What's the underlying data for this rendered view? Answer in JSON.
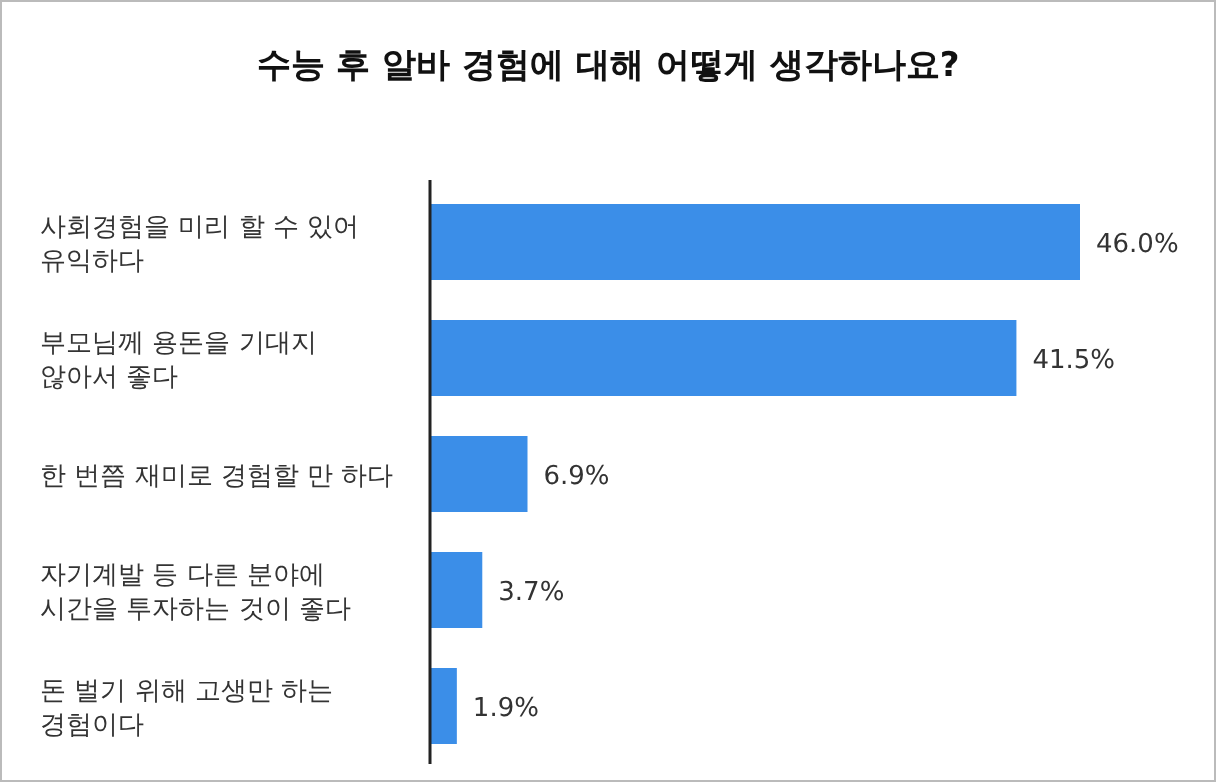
{
  "chart_data": {
    "type": "bar",
    "orientation": "horizontal",
    "title": "수능 후 알바 경험에 대해 어떻게 생각하나요?",
    "categories": [
      "사회경험을 미리 할 수 있어 유익하다",
      "부모님께 용돈을 기대지 않아서 좋다",
      "한 번쯤 재미로 경험할 만 하다",
      "자기계발 등 다른 분야에 시간을 투자하는 것이 좋다",
      "돈 벌기 위해 고생만 하는 경험이다"
    ],
    "values": [
      46.0,
      41.5,
      6.9,
      3.7,
      1.9
    ],
    "value_labels": [
      "46.0%",
      "41.5%",
      "6.9%",
      "3.7%",
      "1.9%"
    ],
    "color": "#3b8ee8"
  }
}
